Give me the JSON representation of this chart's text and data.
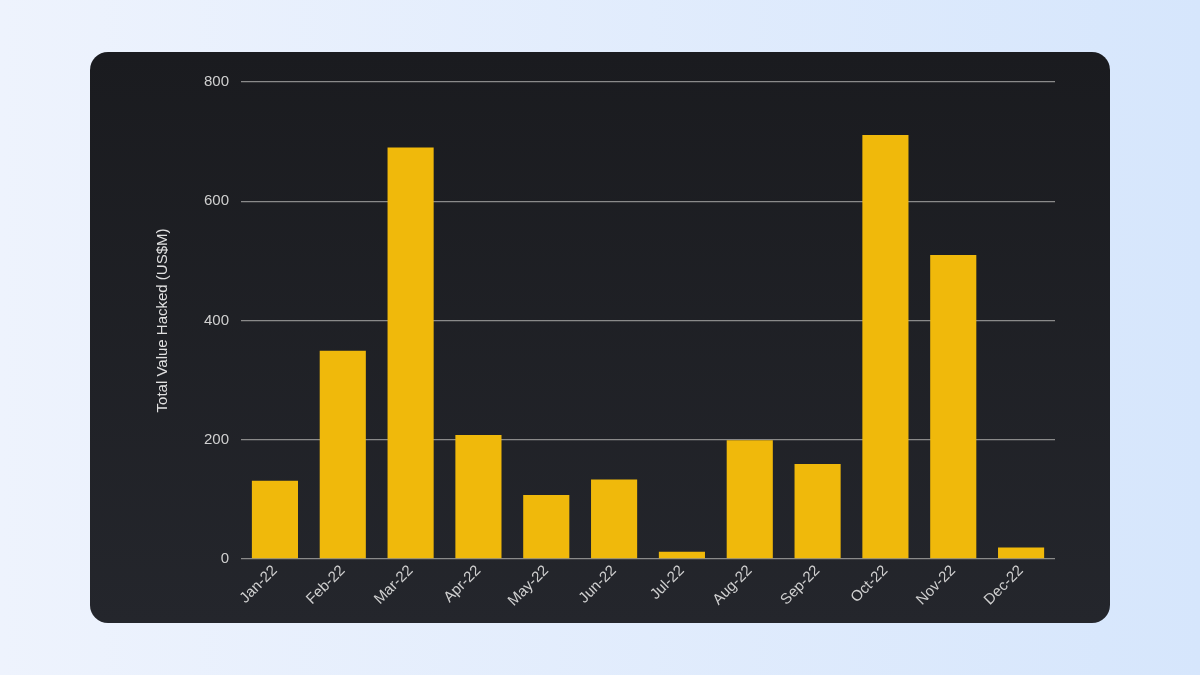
{
  "chart_data": {
    "type": "bar",
    "ylabel": "Total Value Hacked (US$M)",
    "categories": [
      "Jan-22",
      "Feb-22",
      "Mar-22",
      "Apr-22",
      "May-22",
      "Jun-22",
      "Jul-22",
      "Aug-22",
      "Sep-22",
      "Oct-22",
      "Nov-22",
      "Dec-22"
    ],
    "values": [
      131,
      349,
      690,
      208,
      107,
      133,
      12,
      199,
      159,
      711,
      510,
      19
    ],
    "color": "#f0b90b",
    "ylim": [
      0,
      800
    ],
    "yticks": [
      0,
      200,
      400,
      600,
      800
    ],
    "grid": "y"
  }
}
